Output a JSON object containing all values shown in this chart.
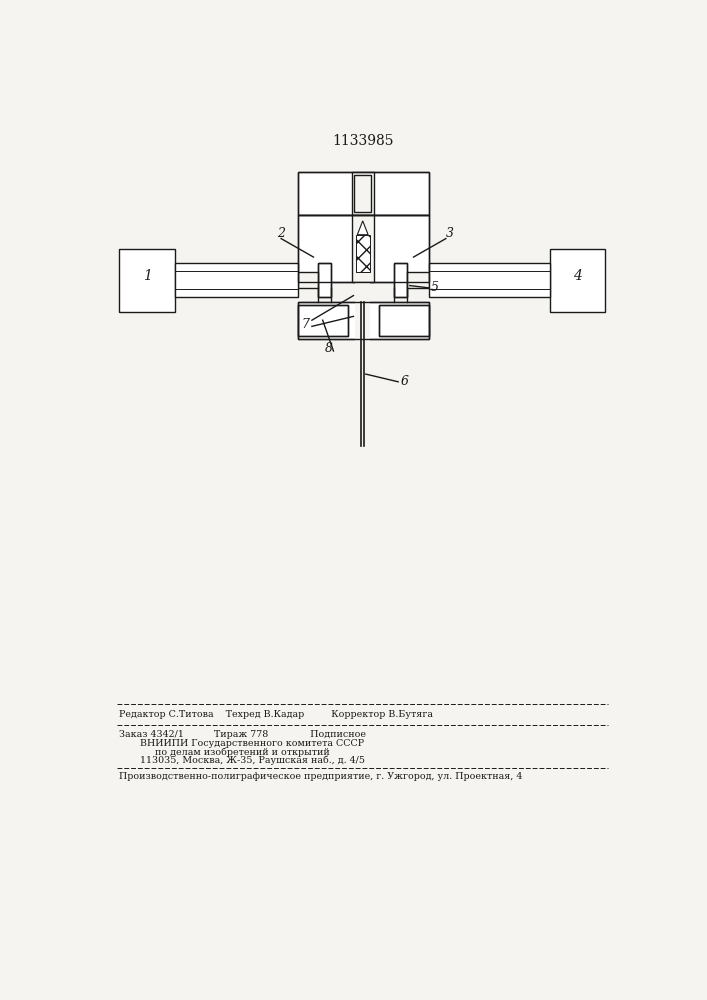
{
  "title": "1133985",
  "bg_color": "#f5f4f0",
  "line_color": "#1a1a1a",
  "footer_line1": "Редактор С.Титова    Техред В.Кадар         Корректор В.Бутяга",
  "footer_line2": "Заказ 4342/1          Тираж 778              Подписное",
  "footer_line3": "       ВНИИПИ Государственного комитета СССР",
  "footer_line4": "            по делам изобретений и открытий",
  "footer_line5": "       113035, Москва, Ж-35, Раушская наб., д. 4/5",
  "footer_line6": "Производственно-полиграфическое предприятие, г. Ужгород, ул. Проектная, 4"
}
